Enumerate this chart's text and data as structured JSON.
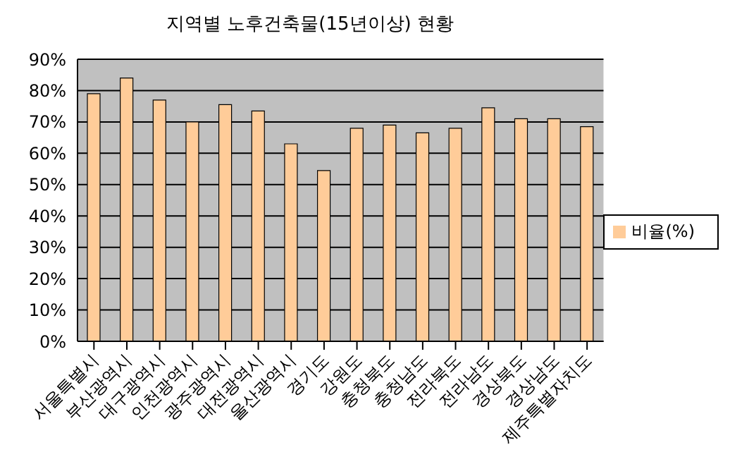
{
  "chart_data": {
    "type": "bar",
    "title": "지역별 노후건축물(15년이상) 현황",
    "categories": [
      "서울특별시",
      "부산광역시",
      "대구광역시",
      "인천광역시",
      "광주광역시",
      "대전광역시",
      "울산광역시",
      "경기도",
      "강원도",
      "충청북도",
      "충청남도",
      "전라북도",
      "전라남도",
      "경상북도",
      "경상남도",
      "제주특별자치도"
    ],
    "series": [
      {
        "name": "비율(%)",
        "color": "#ffcc99",
        "values": [
          79,
          84,
          77,
          70,
          75.5,
          73.5,
          63,
          54.5,
          68,
          69,
          66.5,
          68,
          74.5,
          71,
          71,
          68.5
        ]
      }
    ],
    "ylim": [
      0,
      90
    ],
    "yticks": [
      {
        "value": 0,
        "label": "0%"
      },
      {
        "value": 10,
        "label": "10%"
      },
      {
        "value": 20,
        "label": "20%"
      },
      {
        "value": 30,
        "label": "30%"
      },
      {
        "value": 40,
        "label": "40%"
      },
      {
        "value": 50,
        "label": "50%"
      },
      {
        "value": 60,
        "label": "60%"
      },
      {
        "value": 70,
        "label": "70%"
      },
      {
        "value": 80,
        "label": "80%"
      },
      {
        "value": 90,
        "label": "90%"
      }
    ],
    "grid": "y",
    "legend": "right"
  }
}
